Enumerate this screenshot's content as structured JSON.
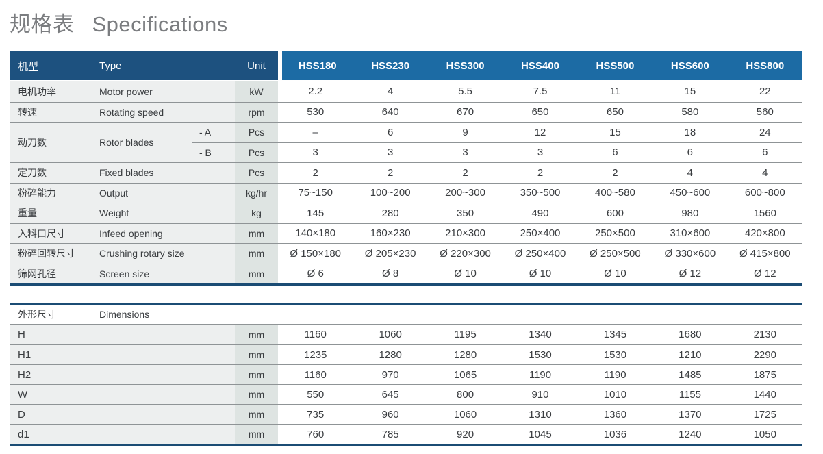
{
  "page": {
    "title_zh": "规格表",
    "title_en": "Specifications"
  },
  "colors": {
    "header_dark": "#1d517f",
    "header_light": "#1c6ba4",
    "border_navy": "#1b4c74",
    "row_line": "#8f9496",
    "label_bg": "#edefef",
    "unit_bg": "#dee4e2",
    "title_gray": "#7b7d80"
  },
  "spec_table": {
    "header": {
      "label_zh": "机型",
      "label_en": "Type",
      "unit": "Unit",
      "models": [
        "HSS180",
        "HSS230",
        "HSS300",
        "HSS400",
        "HSS500",
        "HSS600",
        "HSS800"
      ]
    },
    "rows": [
      {
        "zh": "电机功率",
        "en": "Motor power",
        "sub": "",
        "unit": "kW",
        "values": [
          "2.2",
          "4",
          "5.5",
          "7.5",
          "11",
          "15",
          "22"
        ]
      },
      {
        "zh": "转速",
        "en": "Rotating speed",
        "sub": "",
        "unit": "rpm",
        "values": [
          "530",
          "640",
          "670",
          "650",
          "650",
          "580",
          "560"
        ]
      },
      {
        "zh": "动刀数",
        "en": "Rotor blades",
        "sub": "- A",
        "unit": "Pcs",
        "span_rows": 2,
        "values": [
          "–",
          "6",
          "9",
          "12",
          "15",
          "18",
          "24"
        ]
      },
      {
        "zh": "",
        "en": "",
        "sub": "- B",
        "unit": "Pcs",
        "merged": true,
        "values": [
          "3",
          "3",
          "3",
          "3",
          "6",
          "6",
          "6"
        ]
      },
      {
        "zh": "定刀数",
        "en": "Fixed blades",
        "sub": "",
        "unit": "Pcs",
        "values": [
          "2",
          "2",
          "2",
          "2",
          "2",
          "4",
          "4"
        ]
      },
      {
        "zh": "粉碎能力",
        "en": "Output",
        "sub": "",
        "unit": "kg/hr",
        "values": [
          "75~150",
          "100~200",
          "200~300",
          "350~500",
          "400~580",
          "450~600",
          "600~800"
        ]
      },
      {
        "zh": "重量",
        "en": "Weight",
        "sub": "",
        "unit": "kg",
        "values": [
          "145",
          "280",
          "350",
          "490",
          "600",
          "980",
          "1560"
        ]
      },
      {
        "zh": "入料口尺寸",
        "en": "Infeed opening",
        "sub": "",
        "unit": "mm",
        "values": [
          "140×180",
          "160×230",
          "210×300",
          "250×400",
          "250×500",
          "310×600",
          "420×800"
        ]
      },
      {
        "zh": "粉碎回转尺寸",
        "en": "Crushing rotary size",
        "sub": "",
        "unit": "mm",
        "values": [
          "Ø 150×180",
          "Ø 205×230",
          "Ø 220×300",
          "Ø 250×400",
          "Ø 250×500",
          "Ø 330×600",
          "Ø 415×800"
        ]
      },
      {
        "zh": "筛网孔径",
        "en": "Screen size",
        "sub": "",
        "unit": "mm",
        "values": [
          "Ø 6",
          "Ø 8",
          "Ø 10",
          "Ø 10",
          "Ø 10",
          "Ø 12",
          "Ø 12"
        ]
      }
    ]
  },
  "dimensions_table": {
    "header": {
      "label_zh": "外形尺寸",
      "label_en": "Dimensions"
    },
    "rows": [
      {
        "label": "H",
        "unit": "mm",
        "values": [
          "1160",
          "1060",
          "1195",
          "1340",
          "1345",
          "1680",
          "2130"
        ]
      },
      {
        "label": "H1",
        "unit": "mm",
        "values": [
          "1235",
          "1280",
          "1280",
          "1530",
          "1530",
          "1210",
          "2290"
        ]
      },
      {
        "label": "H2",
        "unit": "mm",
        "values": [
          "1160",
          "970",
          "1065",
          "1190",
          "1190",
          "1485",
          "1875"
        ]
      },
      {
        "label": "W",
        "unit": "mm",
        "values": [
          "550",
          "645",
          "800",
          "910",
          "1010",
          "1155",
          "1440"
        ]
      },
      {
        "label": "D",
        "unit": "mm",
        "values": [
          "735",
          "960",
          "1060",
          "1310",
          "1360",
          "1370",
          "1725"
        ]
      },
      {
        "label": "d1",
        "unit": "mm",
        "values": [
          "760",
          "785",
          "920",
          "1045",
          "1036",
          "1240",
          "1050"
        ]
      }
    ]
  }
}
